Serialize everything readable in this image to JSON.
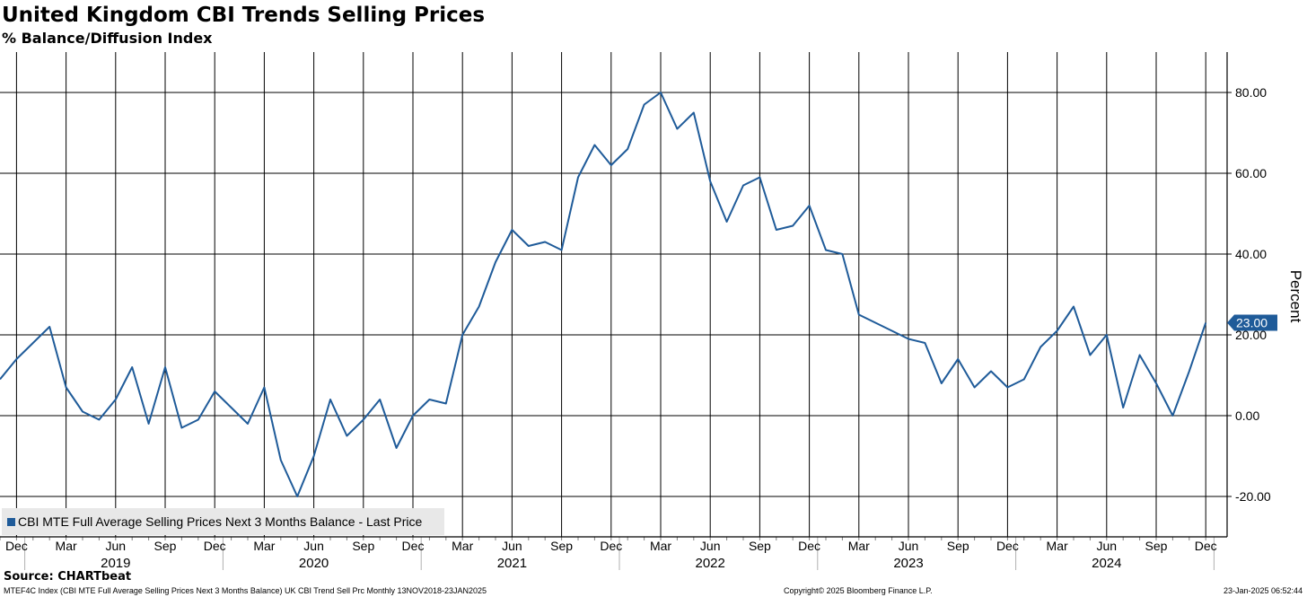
{
  "header": {
    "title": "United Kingdom CBI Trends Selling Prices",
    "subtitle": "% Balance/Diffusion Index"
  },
  "legend": {
    "label": "CBI MTE Full Average Selling Prices Next 3 Months Balance - Last Price"
  },
  "footer": {
    "source": "Source: CHARTbeat",
    "index_info": "MTEF4C Index (CBI MTE Full Average Selling Prices Next 3 Months Balance) UK CBI Trend Sell Prc  Monthly 13NOV2018-23JAN2025",
    "copyright": "Copyright© 2025 Bloomberg Finance L.P.",
    "timestamp": "23-Jan-2025 06:52:44"
  },
  "colors": {
    "series": "#1f5b99",
    "grid": "#000000",
    "legend_bg": "#e8e8e8"
  },
  "chart_data": {
    "type": "line",
    "title": "United Kingdom CBI Trends Selling Prices",
    "subtitle": "% Balance/Diffusion Index",
    "xlabel": "",
    "ylabel": "Percent",
    "ylim": [
      -30,
      90
    ],
    "y_axis_position": "right",
    "grid": true,
    "legend_position": "bottom-left",
    "y_ticks": [
      80,
      60,
      40,
      20,
      0,
      -20
    ],
    "y_tick_labels": [
      "80.00",
      "60.00",
      "40.00",
      "20.00",
      "0.00",
      "-20.00"
    ],
    "x_month_ticks": [
      {
        "index": 1,
        "label": "Dec"
      },
      {
        "index": 4,
        "label": "Mar"
      },
      {
        "index": 7,
        "label": "Jun"
      },
      {
        "index": 10,
        "label": "Sep"
      },
      {
        "index": 13,
        "label": "Dec"
      },
      {
        "index": 16,
        "label": "Mar"
      },
      {
        "index": 19,
        "label": "Jun"
      },
      {
        "index": 22,
        "label": "Sep"
      },
      {
        "index": 25,
        "label": "Dec"
      },
      {
        "index": 28,
        "label": "Mar"
      },
      {
        "index": 31,
        "label": "Jun"
      },
      {
        "index": 34,
        "label": "Sep"
      },
      {
        "index": 37,
        "label": "Dec"
      },
      {
        "index": 40,
        "label": "Mar"
      },
      {
        "index": 43,
        "label": "Jun"
      },
      {
        "index": 46,
        "label": "Sep"
      },
      {
        "index": 49,
        "label": "Dec"
      },
      {
        "index": 52,
        "label": "Mar"
      },
      {
        "index": 55,
        "label": "Jun"
      },
      {
        "index": 58,
        "label": "Sep"
      },
      {
        "index": 61,
        "label": "Dec"
      },
      {
        "index": 64,
        "label": "Mar"
      },
      {
        "index": 67,
        "label": "Jun"
      },
      {
        "index": 70,
        "label": "Sep"
      },
      {
        "index": 73,
        "label": "Dec"
      }
    ],
    "x_year_labels": [
      {
        "center_index": 7,
        "label": "2019"
      },
      {
        "center_index": 19,
        "label": "2020"
      },
      {
        "center_index": 31,
        "label": "2021"
      },
      {
        "center_index": 43,
        "label": "2022"
      },
      {
        "center_index": 55,
        "label": "2023"
      },
      {
        "center_index": 67,
        "label": "2024"
      }
    ],
    "year_boundaries_index": [
      1.5,
      13.5,
      25.5,
      37.5,
      49.5,
      61.5,
      73.5
    ],
    "x_range_index": [
      0,
      73.8
    ],
    "last_value": 23,
    "last_value_label": "23.00",
    "series": [
      {
        "name": "CBI MTE Full Average Selling Prices Next 3 Months Balance - Last Price",
        "start": "Nov 2018",
        "values": [
          9,
          14,
          18,
          22,
          7,
          1,
          -1,
          4,
          12,
          -2,
          12,
          -3,
          -1,
          6,
          2,
          -2,
          7,
          -11,
          -20,
          -10,
          4,
          -5,
          -1,
          4,
          -8,
          0,
          4,
          3,
          20,
          27,
          38,
          46,
          42,
          43,
          41,
          59,
          67,
          62,
          66,
          77,
          80,
          71,
          75,
          58,
          48,
          57,
          59,
          46,
          47,
          52,
          41,
          40,
          25,
          23,
          21,
          19,
          18,
          8,
          14,
          7,
          11,
          7,
          9,
          17,
          21,
          27,
          15,
          20,
          2,
          15,
          8,
          0,
          11,
          23
        ]
      }
    ]
  }
}
